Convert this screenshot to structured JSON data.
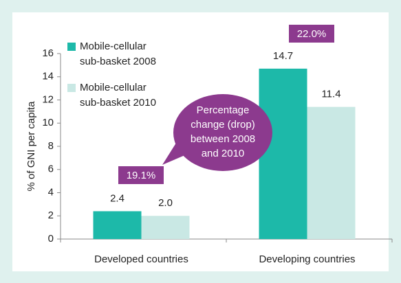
{
  "chart_data": {
    "type": "bar",
    "ylabel": "% of GNI per capita",
    "categories": [
      "Developed countries",
      "Developing countries"
    ],
    "series": [
      {
        "name": "Mobile-cellular sub-basket 2008",
        "color": "#1db9a9",
        "values": [
          2.4,
          14.7
        ],
        "value_labels": [
          "2.4",
          "14.7"
        ]
      },
      {
        "name": "Mobile-cellular sub-basket 2010",
        "color": "#c9e8e4",
        "values": [
          2.0,
          11.4
        ],
        "value_labels": [
          "2.0",
          "11.4"
        ]
      }
    ],
    "ylim": [
      0,
      16
    ],
    "yticks": [
      0,
      2,
      4,
      6,
      8,
      10,
      12,
      14,
      16
    ],
    "grid": false,
    "legend": "upper left",
    "annotations": [
      "19.1%",
      "22.0%"
    ],
    "callout": [
      "Percentage",
      "change (drop)",
      "between 2008",
      "and 2010"
    ],
    "annotation_color": "#8c3a8e"
  }
}
